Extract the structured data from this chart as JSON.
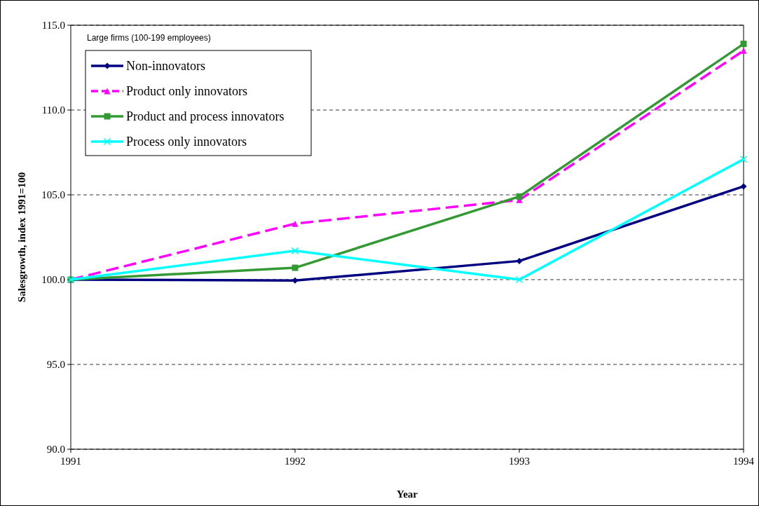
{
  "chart_data": {
    "type": "line",
    "xlabel": "Year",
    "ylabel": "Salesgrowth, index 1991=100",
    "x": [
      1991,
      1992,
      1993,
      1994
    ],
    "xlim": [
      1991,
      1994
    ],
    "xticks": [
      1991,
      1992,
      1993,
      1994
    ],
    "ylim": [
      90,
      115
    ],
    "yticks": [
      {
        "value": 90,
        "label": "90.0"
      },
      {
        "value": 95,
        "label": "95.0"
      },
      {
        "value": 100,
        "label": "100.0"
      },
      {
        "value": 105,
        "label": "105.0"
      },
      {
        "value": 110,
        "label": "110.0"
      },
      {
        "value": 115,
        "label": "115.0"
      }
    ],
    "grid": "y",
    "legend": "top left",
    "annotations": [
      "Large firms (100-199 employees)"
    ],
    "series": [
      {
        "name": "Non-innovators",
        "color": "#000080",
        "marker": "diamond",
        "line_style": "solid",
        "values": [
          100,
          99.95,
          101.1,
          105.5
        ]
      },
      {
        "name": "Product only innovators",
        "color": "#ff00ff",
        "marker": "triangle",
        "line_style": "dashed",
        "values": [
          100,
          103.3,
          104.7,
          113.5
        ]
      },
      {
        "name": "Product and process innovators",
        "color": "#339933",
        "marker": "square",
        "line_style": "solid",
        "values": [
          100,
          100.7,
          104.9,
          113.9
        ]
      },
      {
        "name": "Process only innovators",
        "color": "#00ffff",
        "marker": "cross",
        "line_style": "solid",
        "values": [
          100,
          101.7,
          100.0,
          107.1
        ]
      }
    ]
  }
}
